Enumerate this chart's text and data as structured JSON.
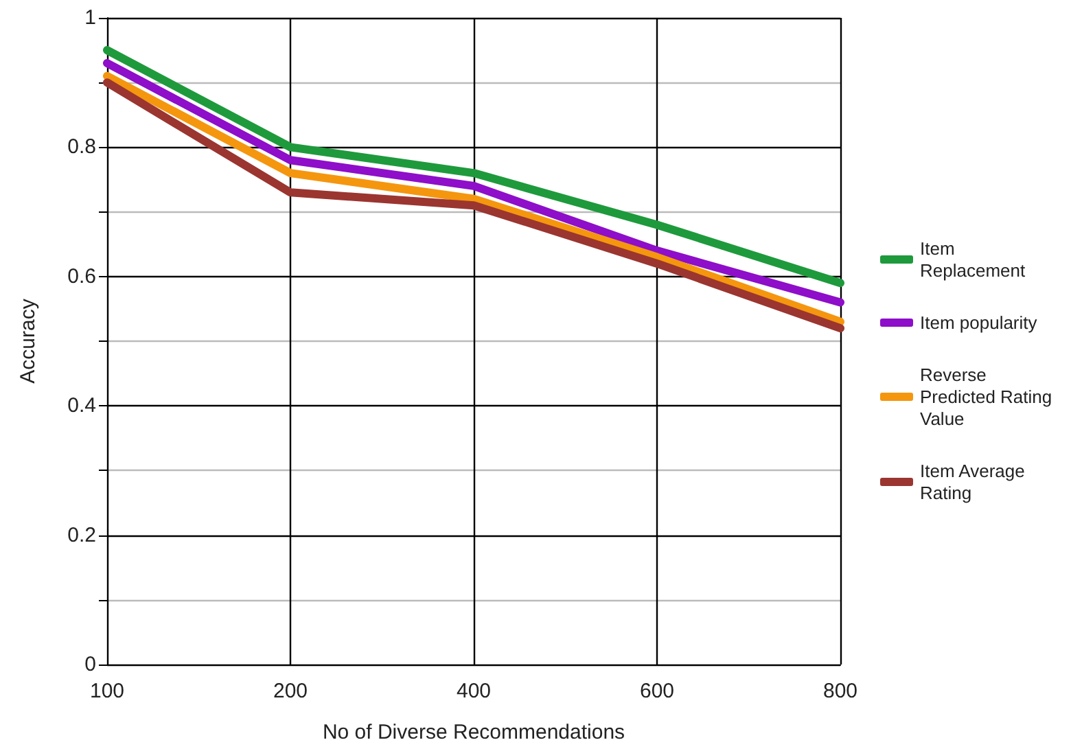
{
  "chart_data": {
    "type": "line",
    "xlabel": "No of Diverse Recommendations",
    "ylabel": "Accuracy",
    "categories": [
      "100",
      "200",
      "400",
      "600",
      "800"
    ],
    "series": [
      {
        "name": "Item Replacement",
        "color": "#1e9a3c",
        "values": [
          0.95,
          0.8,
          0.76,
          0.68,
          0.59
        ]
      },
      {
        "name": "Item popularity",
        "color": "#8e0ec9",
        "values": [
          0.93,
          0.78,
          0.74,
          0.64,
          0.56
        ]
      },
      {
        "name": "Reverse Predicted Rating Value",
        "color": "#f5960f",
        "values": [
          0.91,
          0.76,
          0.72,
          0.63,
          0.53
        ]
      },
      {
        "name": "Item Average Rating",
        "color": "#9b3530",
        "values": [
          0.9,
          0.73,
          0.71,
          0.62,
          0.52
        ]
      }
    ],
    "ylim": [
      0,
      1
    ],
    "yticks": [
      0,
      {
        "value": 0.1,
        "label": null
      },
      0.2,
      {
        "value": 0.3,
        "label": null
      },
      0.4,
      {
        "value": 0.5,
        "label": null
      },
      0.6,
      {
        "value": 0.7,
        "label": null
      },
      0.8,
      {
        "value": 0.9,
        "label": null
      },
      1
    ],
    "grid": true,
    "legend": "right",
    "marker": "none",
    "line_style": "solid"
  }
}
